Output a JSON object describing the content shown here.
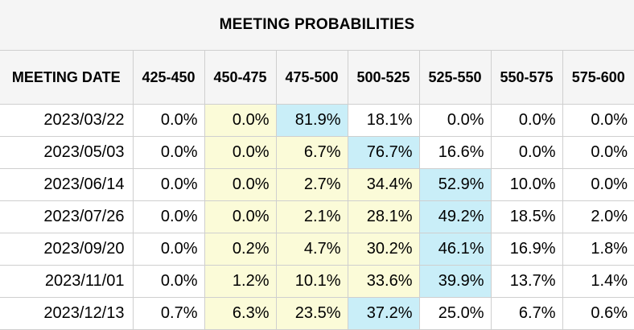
{
  "chart_data": {
    "type": "table",
    "title": "MEETING PROBABILITIES",
    "columns": [
      "MEETING DATE",
      "425-450",
      "450-475",
      "475-500",
      "500-525",
      "525-550",
      "550-575",
      "575-600"
    ],
    "rows": [
      {
        "date": "2023/03/22",
        "values": [
          "0.0%",
          "0.0%",
          "81.9%",
          "18.1%",
          "0.0%",
          "0.0%",
          "0.0%"
        ],
        "highlight": [
          "none",
          "yellow",
          "blue",
          "none",
          "none",
          "none",
          "none"
        ]
      },
      {
        "date": "2023/05/03",
        "values": [
          "0.0%",
          "0.0%",
          "6.7%",
          "76.7%",
          "16.6%",
          "0.0%",
          "0.0%"
        ],
        "highlight": [
          "none",
          "yellow",
          "yellow",
          "blue",
          "none",
          "none",
          "none"
        ]
      },
      {
        "date": "2023/06/14",
        "values": [
          "0.0%",
          "0.0%",
          "2.7%",
          "34.4%",
          "52.9%",
          "10.0%",
          "0.0%"
        ],
        "highlight": [
          "none",
          "yellow",
          "yellow",
          "yellow",
          "blue",
          "none",
          "none"
        ]
      },
      {
        "date": "2023/07/26",
        "values": [
          "0.0%",
          "0.0%",
          "2.1%",
          "28.1%",
          "49.2%",
          "18.5%",
          "2.0%"
        ],
        "highlight": [
          "none",
          "yellow",
          "yellow",
          "yellow",
          "blue",
          "none",
          "none"
        ]
      },
      {
        "date": "2023/09/20",
        "values": [
          "0.0%",
          "0.2%",
          "4.7%",
          "30.2%",
          "46.1%",
          "16.9%",
          "1.8%"
        ],
        "highlight": [
          "none",
          "yellow",
          "yellow",
          "yellow",
          "blue",
          "none",
          "none"
        ]
      },
      {
        "date": "2023/11/01",
        "values": [
          "0.0%",
          "1.2%",
          "10.1%",
          "33.6%",
          "39.9%",
          "13.7%",
          "1.4%"
        ],
        "highlight": [
          "none",
          "yellow",
          "yellow",
          "yellow",
          "blue",
          "none",
          "none"
        ]
      },
      {
        "date": "2023/12/13",
        "values": [
          "0.7%",
          "6.3%",
          "23.5%",
          "37.2%",
          "25.0%",
          "6.7%",
          "0.6%"
        ],
        "highlight": [
          "none",
          "yellow",
          "yellow",
          "blue",
          "none",
          "none",
          "none"
        ]
      }
    ]
  },
  "colors": {
    "header_bg": "#f5f5f5",
    "grid": "#cfcfcf",
    "highlight_yellow": "#fbfbd8",
    "highlight_blue": "#c9eef8"
  }
}
